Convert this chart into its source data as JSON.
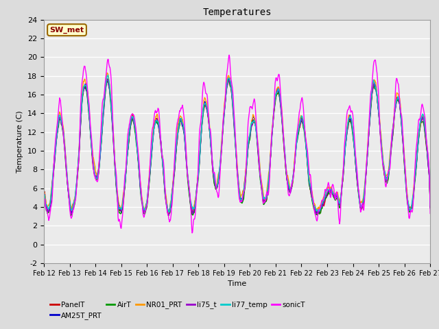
{
  "title": "Temperatures",
  "xlabel": "Time",
  "ylabel": "Temperature (C)",
  "ylim": [
    -2,
    24
  ],
  "annotation": "SW_met",
  "annotation_color": "#8B0000",
  "annotation_bg": "#FFFFCC",
  "annotation_border": "#996600",
  "x_tick_labels": [
    "Feb 12",
    "Feb 13",
    "Feb 14",
    "Feb 15",
    "Feb 16",
    "Feb 17",
    "Feb 18",
    "Feb 19",
    "Feb 20",
    "Feb 21",
    "Feb 22",
    "Feb 23",
    "Feb 24",
    "Feb 25",
    "Feb 26",
    "Feb 27"
  ],
  "series": {
    "PanelT": {
      "color": "#CC0000",
      "lw": 1.0
    },
    "AM25T_PRT": {
      "color": "#0000CC",
      "lw": 1.0
    },
    "AirT": {
      "color": "#009900",
      "lw": 1.0
    },
    "NR01_PRT": {
      "color": "#FF9900",
      "lw": 1.0
    },
    "li75_t": {
      "color": "#9900CC",
      "lw": 1.0
    },
    "li77_temp": {
      "color": "#00CCCC",
      "lw": 1.0
    },
    "sonicT": {
      "color": "#FF00FF",
      "lw": 1.0
    }
  },
  "bg_color": "#DCDCDC",
  "plot_bg": "#EBEBEB",
  "grid_color": "#FFFFFF",
  "n_points": 960
}
